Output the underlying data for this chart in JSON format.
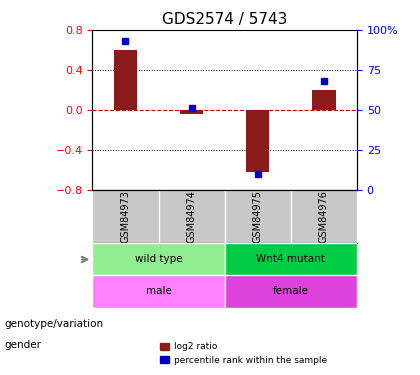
{
  "title": "GDS2574 / 5743",
  "samples": [
    "GSM84973",
    "GSM84974",
    "GSM84975",
    "GSM84976"
  ],
  "log2_ratio": [
    0.6,
    -0.04,
    -0.62,
    0.2
  ],
  "percentile": [
    93,
    51,
    10,
    68
  ],
  "left_ylim": [
    -0.8,
    0.8
  ],
  "right_ylim": [
    0,
    100
  ],
  "left_yticks": [
    -0.8,
    -0.4,
    0.0,
    0.4,
    0.8
  ],
  "right_yticks": [
    0,
    25,
    50,
    75,
    100
  ],
  "right_yticklabels": [
    "0",
    "25",
    "50",
    "75",
    "100%"
  ],
  "bar_color": "#8B1A1A",
  "dot_color": "#0000CD",
  "hline_color": "#CC0000",
  "dotline_color": "#000000",
  "bg_color": "#FFFFFF",
  "plot_bg": "#FFFFFF",
  "grid_color": "#000000",
  "category_rows": [
    {
      "label": "genotype/variation",
      "groups": [
        {
          "text": "wild type",
          "span": [
            0,
            2
          ],
          "color": "#90EE90"
        },
        {
          "text": "Wnt4 mutant",
          "span": [
            2,
            4
          ],
          "color": "#00CC44"
        }
      ]
    },
    {
      "label": "gender",
      "groups": [
        {
          "text": "male",
          "span": [
            0,
            2
          ],
          "color": "#FF80FF"
        },
        {
          "text": "female",
          "span": [
            2,
            4
          ],
          "color": "#DD44DD"
        }
      ]
    }
  ],
  "legend": [
    {
      "label": "log2 ratio",
      "color": "#8B1A1A"
    },
    {
      "label": "percentile rank within the sample",
      "color": "#0000CD"
    }
  ]
}
